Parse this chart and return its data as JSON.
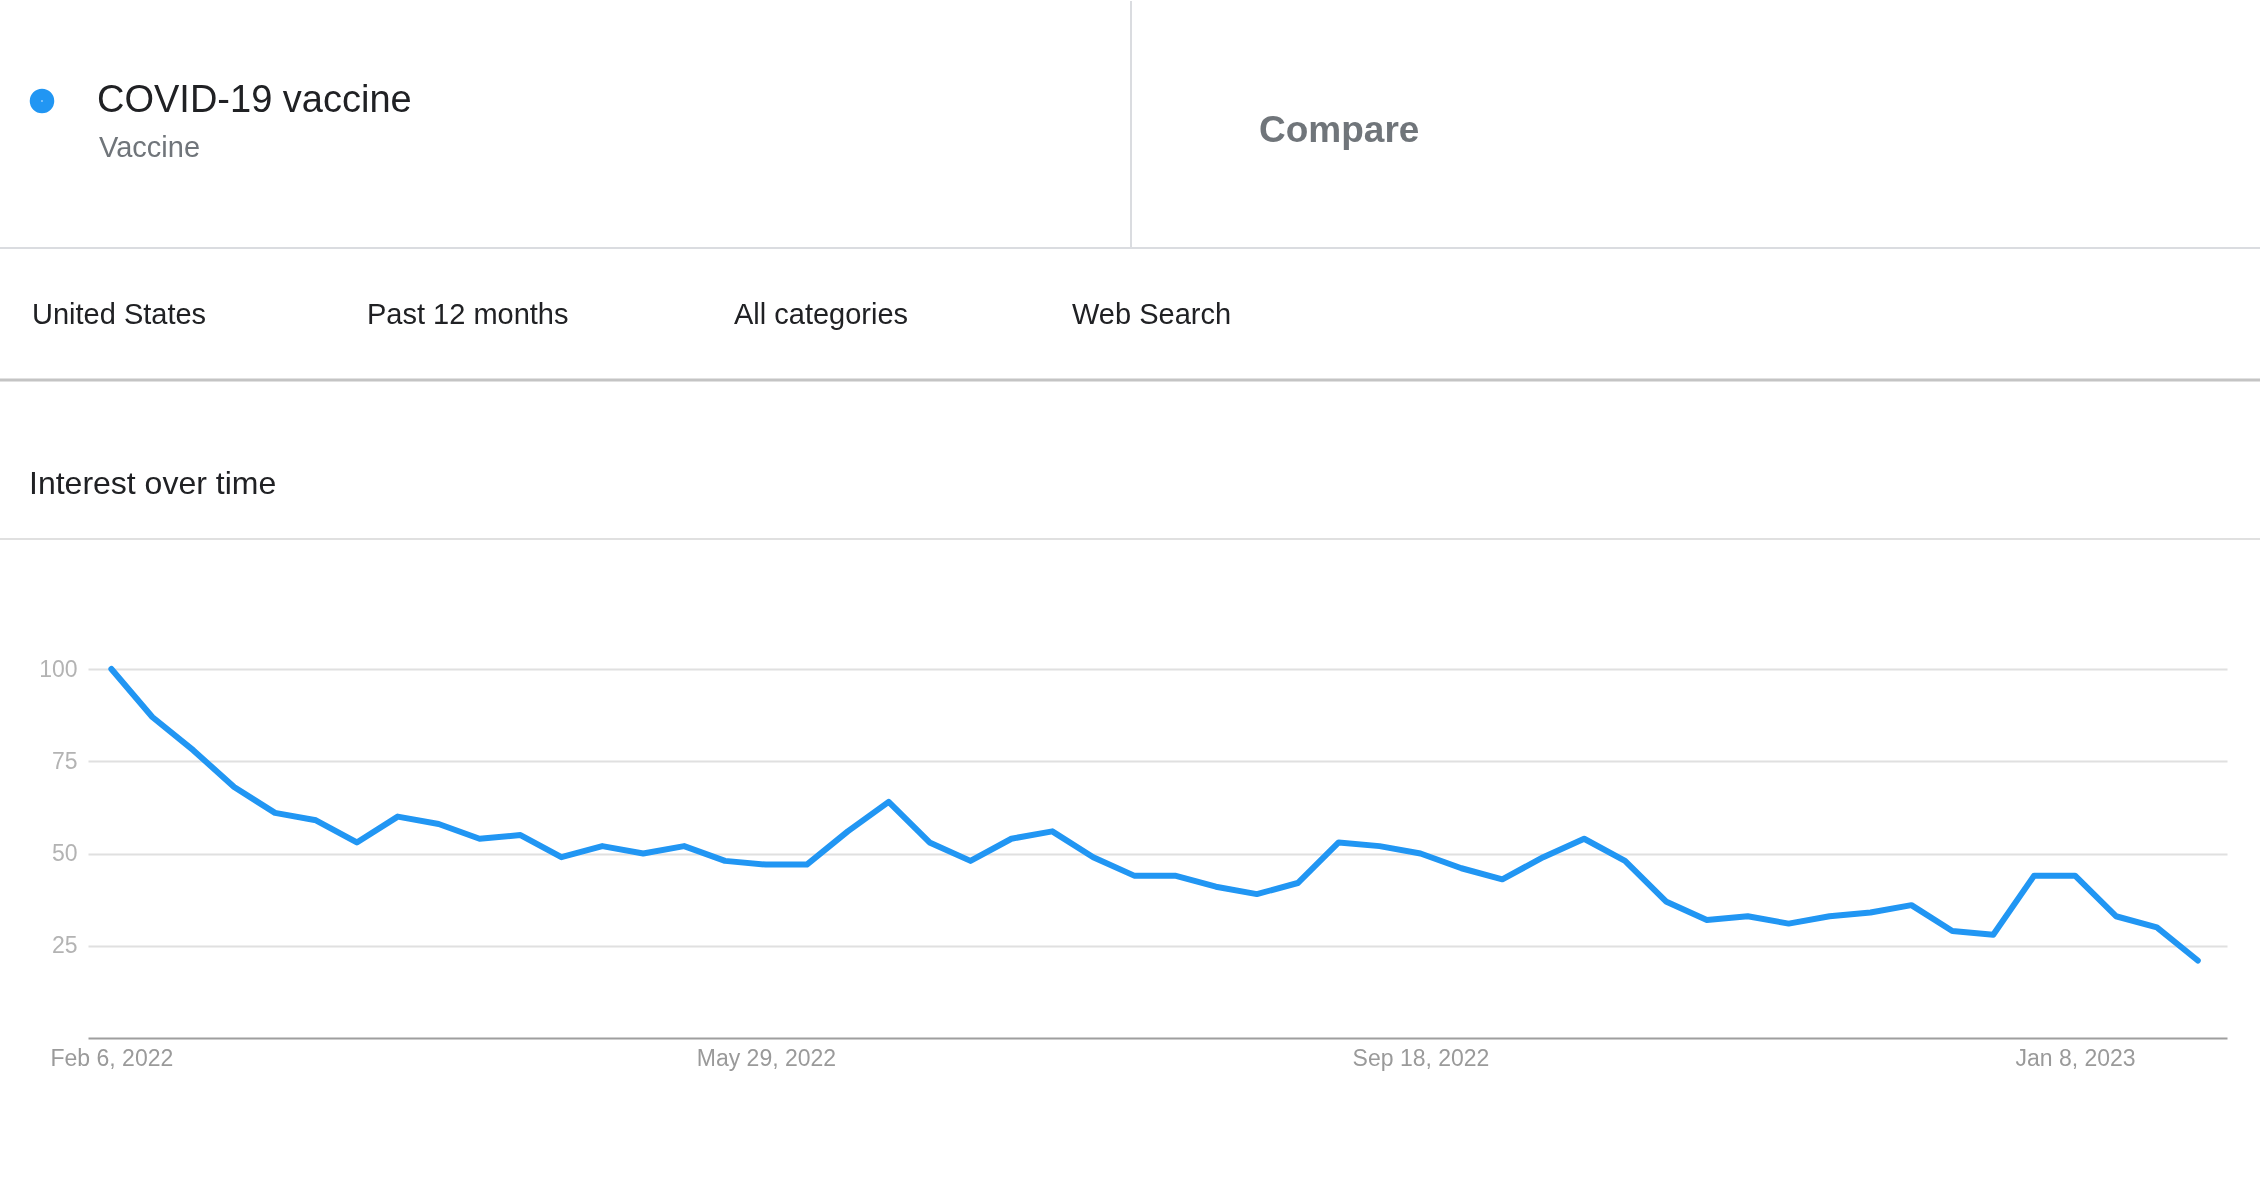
{
  "chart_data": {
    "type": "line",
    "title": "Interest over time",
    "annotations": [
      "Vaccine",
      "Compare",
      "United States",
      "Past 12 months",
      "All categories",
      "Web Search"
    ],
    "x": [
      "2022-02-06",
      "2022-02-13",
      "2022-02-20",
      "2022-02-27",
      "2022-03-06",
      "2022-03-13",
      "2022-03-20",
      "2022-03-27",
      "2022-04-03",
      "2022-04-10",
      "2022-04-17",
      "2022-04-24",
      "2022-05-01",
      "2022-05-08",
      "2022-05-15",
      "2022-05-22",
      "2022-05-29",
      "2022-06-05",
      "2022-06-12",
      "2022-06-19",
      "2022-06-26",
      "2022-07-03",
      "2022-07-10",
      "2022-07-17",
      "2022-07-24",
      "2022-07-31",
      "2022-08-07",
      "2022-08-14",
      "2022-08-21",
      "2022-08-28",
      "2022-09-04",
      "2022-09-11",
      "2022-09-18",
      "2022-09-25",
      "2022-10-02",
      "2022-10-09",
      "2022-10-16",
      "2022-10-23",
      "2022-10-30",
      "2022-11-06",
      "2022-11-13",
      "2022-11-20",
      "2022-11-27",
      "2022-12-04",
      "2022-12-11",
      "2022-12-18",
      "2022-12-25",
      "2023-01-01",
      "2023-01-08",
      "2023-01-15",
      "2023-01-22",
      "2023-01-29"
    ],
    "series": [
      {
        "name": "COVID-19 vaccine",
        "color": "#2196f3",
        "values": [
          100,
          87,
          78,
          68,
          61,
          59,
          53,
          60,
          58,
          54,
          55,
          49,
          52,
          50,
          52,
          48,
          47,
          47,
          56,
          64,
          53,
          48,
          54,
          56,
          49,
          44,
          44,
          41,
          39,
          42,
          53,
          52,
          50,
          46,
          43,
          49,
          54,
          48,
          37,
          32,
          33,
          31,
          33,
          34,
          36,
          29,
          28,
          44,
          44,
          33,
          30,
          21
        ]
      }
    ],
    "xlim": [
      "2022-02-02",
      "2023-02-03"
    ],
    "xticks": [
      {
        "value": "2022-02-06",
        "label": "Feb 6, 2022"
      },
      {
        "value": "2022-05-29",
        "label": "May 29, 2022"
      },
      {
        "value": "2022-09-18",
        "label": "Sep 18, 2022"
      },
      {
        "value": "2023-01-08",
        "label": "Jan 8, 2023"
      }
    ],
    "ylim": [
      0,
      100
    ],
    "yticks": [
      25,
      50,
      75,
      100
    ],
    "grid": "y",
    "legend": "top left"
  }
}
